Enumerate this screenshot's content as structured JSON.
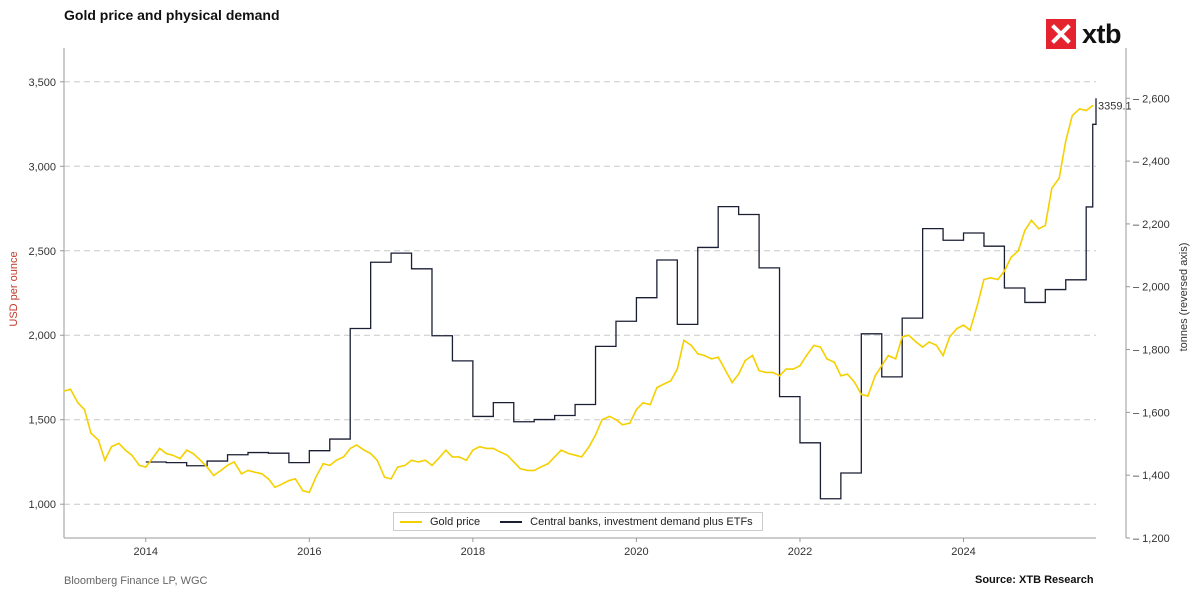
{
  "header": {
    "title": "Gold price and physical demand"
  },
  "logo": {
    "text": "xtb",
    "icon": "xtb-x-logo-icon",
    "color": "#e5232e"
  },
  "footer": {
    "source_left": "Bloomberg Finance LP, WGC",
    "source_right": "Source: XTB Research"
  },
  "chart_data": {
    "type": "line",
    "title": "Gold price and physical demand",
    "x_range": [
      "2013-01",
      "2025-07"
    ],
    "x_ticks": [
      "2014",
      "2016",
      "2018",
      "2020",
      "2022",
      "2024"
    ],
    "y_left": {
      "label": "USD per ounce",
      "range": [
        800,
        3700
      ],
      "ticks": [
        "1,000",
        "1,500",
        "2,000",
        "2,500",
        "3,000",
        "3,500"
      ],
      "tick_values": [
        1000,
        1500,
        2000,
        2500,
        3000,
        3500
      ],
      "label_color": "#c0392b"
    },
    "y_right": {
      "label": "tonnes (reversed axis)",
      "range": [
        1200,
        2760
      ],
      "ticks": [
        "1,200",
        "1,400",
        "1,600",
        "1,800",
        "2,000",
        "2,200",
        "2,400",
        "2,600"
      ],
      "tick_values": [
        1200,
        1400,
        1600,
        1800,
        2000,
        2200,
        2400,
        2600
      ]
    },
    "grid": "horizontal dashed",
    "legend_position": "bottom-center",
    "last_value_label": "3359.1",
    "series": [
      {
        "name": "Gold price",
        "axis": "left",
        "color": "#f5d000",
        "points": [
          [
            2013.0,
            1670
          ],
          [
            2013.08,
            1680
          ],
          [
            2013.17,
            1600
          ],
          [
            2013.25,
            1560
          ],
          [
            2013.33,
            1420
          ],
          [
            2013.42,
            1380
          ],
          [
            2013.5,
            1260
          ],
          [
            2013.58,
            1340
          ],
          [
            2013.67,
            1360
          ],
          [
            2013.75,
            1320
          ],
          [
            2013.83,
            1290
          ],
          [
            2013.92,
            1230
          ],
          [
            2014.0,
            1220
          ],
          [
            2014.08,
            1270
          ],
          [
            2014.17,
            1330
          ],
          [
            2014.25,
            1300
          ],
          [
            2014.33,
            1290
          ],
          [
            2014.42,
            1270
          ],
          [
            2014.5,
            1320
          ],
          [
            2014.58,
            1300
          ],
          [
            2014.67,
            1260
          ],
          [
            2014.75,
            1220
          ],
          [
            2014.83,
            1170
          ],
          [
            2014.92,
            1200
          ],
          [
            2015.0,
            1230
          ],
          [
            2015.08,
            1250
          ],
          [
            2015.17,
            1180
          ],
          [
            2015.25,
            1200
          ],
          [
            2015.33,
            1190
          ],
          [
            2015.42,
            1180
          ],
          [
            2015.5,
            1150
          ],
          [
            2015.58,
            1100
          ],
          [
            2015.67,
            1120
          ],
          [
            2015.75,
            1140
          ],
          [
            2015.83,
            1150
          ],
          [
            2015.92,
            1080
          ],
          [
            2016.0,
            1070
          ],
          [
            2016.08,
            1160
          ],
          [
            2016.17,
            1240
          ],
          [
            2016.25,
            1230
          ],
          [
            2016.33,
            1260
          ],
          [
            2016.42,
            1280
          ],
          [
            2016.5,
            1330
          ],
          [
            2016.58,
            1350
          ],
          [
            2016.67,
            1320
          ],
          [
            2016.75,
            1300
          ],
          [
            2016.83,
            1260
          ],
          [
            2016.92,
            1160
          ],
          [
            2017.0,
            1150
          ],
          [
            2017.08,
            1220
          ],
          [
            2017.17,
            1230
          ],
          [
            2017.25,
            1260
          ],
          [
            2017.33,
            1250
          ],
          [
            2017.42,
            1260
          ],
          [
            2017.5,
            1230
          ],
          [
            2017.58,
            1270
          ],
          [
            2017.67,
            1320
          ],
          [
            2017.75,
            1280
          ],
          [
            2017.83,
            1280
          ],
          [
            2017.92,
            1260
          ],
          [
            2018.0,
            1320
          ],
          [
            2018.08,
            1340
          ],
          [
            2018.17,
            1330
          ],
          [
            2018.25,
            1330
          ],
          [
            2018.33,
            1310
          ],
          [
            2018.42,
            1290
          ],
          [
            2018.5,
            1250
          ],
          [
            2018.58,
            1210
          ],
          [
            2018.67,
            1200
          ],
          [
            2018.75,
            1200
          ],
          [
            2018.83,
            1220
          ],
          [
            2018.92,
            1240
          ],
          [
            2019.0,
            1280
          ],
          [
            2019.08,
            1320
          ],
          [
            2019.17,
            1300
          ],
          [
            2019.25,
            1290
          ],
          [
            2019.33,
            1280
          ],
          [
            2019.42,
            1340
          ],
          [
            2019.5,
            1410
          ],
          [
            2019.58,
            1500
          ],
          [
            2019.67,
            1520
          ],
          [
            2019.75,
            1500
          ],
          [
            2019.83,
            1470
          ],
          [
            2019.92,
            1480
          ],
          [
            2020.0,
            1560
          ],
          [
            2020.08,
            1600
          ],
          [
            2020.17,
            1590
          ],
          [
            2020.25,
            1690
          ],
          [
            2020.33,
            1710
          ],
          [
            2020.42,
            1730
          ],
          [
            2020.5,
            1800
          ],
          [
            2020.58,
            1970
          ],
          [
            2020.67,
            1940
          ],
          [
            2020.75,
            1890
          ],
          [
            2020.83,
            1880
          ],
          [
            2020.92,
            1860
          ],
          [
            2021.0,
            1870
          ],
          [
            2021.08,
            1800
          ],
          [
            2021.17,
            1720
          ],
          [
            2021.25,
            1770
          ],
          [
            2021.33,
            1850
          ],
          [
            2021.42,
            1880
          ],
          [
            2021.5,
            1790
          ],
          [
            2021.58,
            1780
          ],
          [
            2021.67,
            1780
          ],
          [
            2021.75,
            1760
          ],
          [
            2021.83,
            1800
          ],
          [
            2021.92,
            1800
          ],
          [
            2022.0,
            1820
          ],
          [
            2022.08,
            1880
          ],
          [
            2022.17,
            1940
          ],
          [
            2022.25,
            1930
          ],
          [
            2022.33,
            1860
          ],
          [
            2022.42,
            1840
          ],
          [
            2022.5,
            1760
          ],
          [
            2022.58,
            1770
          ],
          [
            2022.67,
            1720
          ],
          [
            2022.75,
            1650
          ],
          [
            2022.83,
            1640
          ],
          [
            2022.92,
            1760
          ],
          [
            2023.0,
            1820
          ],
          [
            2023.08,
            1880
          ],
          [
            2023.17,
            1860
          ],
          [
            2023.25,
            1990
          ],
          [
            2023.33,
            2000
          ],
          [
            2023.42,
            1960
          ],
          [
            2023.5,
            1930
          ],
          [
            2023.58,
            1960
          ],
          [
            2023.67,
            1940
          ],
          [
            2023.75,
            1880
          ],
          [
            2023.83,
            1990
          ],
          [
            2023.92,
            2040
          ],
          [
            2024.0,
            2060
          ],
          [
            2024.08,
            2030
          ],
          [
            2024.17,
            2180
          ],
          [
            2024.25,
            2330
          ],
          [
            2024.33,
            2340
          ],
          [
            2024.42,
            2330
          ],
          [
            2024.5,
            2380
          ],
          [
            2024.58,
            2460
          ],
          [
            2024.67,
            2500
          ],
          [
            2024.75,
            2620
          ],
          [
            2024.83,
            2680
          ],
          [
            2024.92,
            2630
          ],
          [
            2025.0,
            2650
          ],
          [
            2025.08,
            2870
          ],
          [
            2025.17,
            2930
          ],
          [
            2025.25,
            3150
          ],
          [
            2025.33,
            3300
          ],
          [
            2025.42,
            3340
          ],
          [
            2025.5,
            3330
          ],
          [
            2025.58,
            3359.1
          ]
        ]
      },
      {
        "name": "Central banks, investment demand plus ETFs",
        "axis": "right",
        "color": "#1a1f33",
        "points": [
          [
            2014.0,
            1442
          ],
          [
            2014.25,
            1440
          ],
          [
            2014.5,
            1430
          ],
          [
            2014.75,
            1445
          ],
          [
            2015.0,
            1465
          ],
          [
            2015.25,
            1472
          ],
          [
            2015.5,
            1470
          ],
          [
            2015.75,
            1440
          ],
          [
            2016.0,
            1478
          ],
          [
            2016.25,
            1515
          ],
          [
            2016.5,
            1867
          ],
          [
            2016.75,
            2078
          ],
          [
            2017.0,
            2107
          ],
          [
            2017.25,
            2057
          ],
          [
            2017.5,
            1844
          ],
          [
            2017.75,
            1764
          ],
          [
            2018.0,
            1587
          ],
          [
            2018.25,
            1631
          ],
          [
            2018.5,
            1570
          ],
          [
            2018.75,
            1577
          ],
          [
            2019.0,
            1590
          ],
          [
            2019.25,
            1625
          ],
          [
            2019.5,
            1810
          ],
          [
            2019.75,
            1890
          ],
          [
            2020.0,
            1965
          ],
          [
            2020.25,
            2085
          ],
          [
            2020.5,
            1880
          ],
          [
            2020.75,
            2125
          ],
          [
            2021.0,
            2255
          ],
          [
            2021.25,
            2230
          ],
          [
            2021.5,
            2060
          ],
          [
            2021.75,
            1650
          ],
          [
            2022.0,
            1503
          ],
          [
            2022.25,
            1325
          ],
          [
            2022.5,
            1407
          ],
          [
            2022.75,
            1850
          ],
          [
            2023.0,
            1713
          ],
          [
            2023.25,
            1900
          ],
          [
            2023.5,
            2185
          ],
          [
            2023.75,
            2148
          ],
          [
            2024.0,
            2171
          ],
          [
            2024.25,
            2129
          ],
          [
            2024.5,
            1996
          ],
          [
            2024.75,
            1950
          ],
          [
            2025.0,
            1991
          ],
          [
            2025.25,
            2022
          ],
          [
            2025.5,
            2254
          ],
          [
            2025.58,
            2517
          ],
          [
            2025.62,
            2600
          ]
        ]
      }
    ]
  }
}
